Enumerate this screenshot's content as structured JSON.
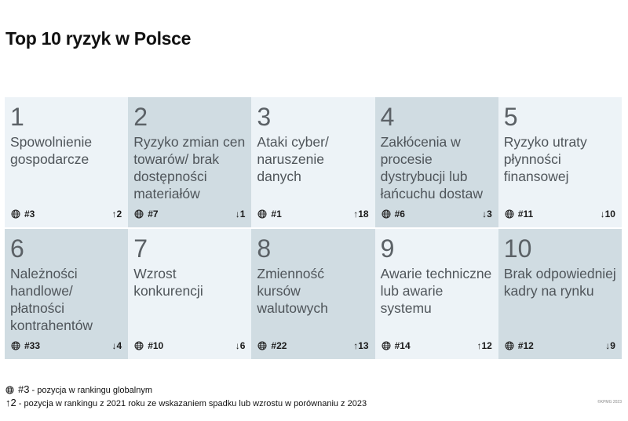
{
  "title": "Top 10 ryzyk w Polsce",
  "colors": {
    "light": "#edf3f7",
    "dark": "#d0dce2"
  },
  "risks": [
    {
      "rank": "1",
      "label": "Spowolnienie gospodarcze",
      "global": "#3",
      "change": "↑2",
      "shade": "light"
    },
    {
      "rank": "2",
      "label": "Ryzyko zmian cen towarów/ brak dostępności materiałów",
      "global": "#7",
      "change": "↓1",
      "shade": "dark"
    },
    {
      "rank": "3",
      "label": "Ataki cyber/ naruszenie danych",
      "global": "#1",
      "change": "↑18",
      "shade": "light"
    },
    {
      "rank": "4",
      "label": "Zakłócenia w procesie dystrybucji lub łańcuchu dostaw",
      "global": "#6",
      "change": "↓3",
      "shade": "dark"
    },
    {
      "rank": "5",
      "label": "Ryzyko utraty płynności finansowej",
      "global": "#11",
      "change": "↓10",
      "shade": "light"
    },
    {
      "rank": "6",
      "label": "Należności handlowe/ płatności kontrahentów",
      "global": "#33",
      "change": "↓4",
      "shade": "dark"
    },
    {
      "rank": "7",
      "label": "Wzrost konkurencji",
      "global": "#10",
      "change": "↓6",
      "shade": "light"
    },
    {
      "rank": "8",
      "label": "Zmienność kursów walutowych",
      "global": "#22",
      "change": "↑13",
      "shade": "dark"
    },
    {
      "rank": "9",
      "label": "Awarie techniczne lub awarie systemu",
      "global": "#14",
      "change": "↑12",
      "shade": "light"
    },
    {
      "rank": "10",
      "label": "Brak odpowiedniej kadry na rynku",
      "global": "#12",
      "change": "↓9",
      "shade": "dark"
    }
  ],
  "legend": {
    "global_symbol": "#3",
    "global_text": "- pozycja w rankingu globalnym",
    "change_symbol": "↑2",
    "change_text": "- pozycja w rankingu z 2021 roku ze wskazaniem spadku lub wzrostu w porównaniu z 2023"
  },
  "copyright": "©KPMG 2023"
}
